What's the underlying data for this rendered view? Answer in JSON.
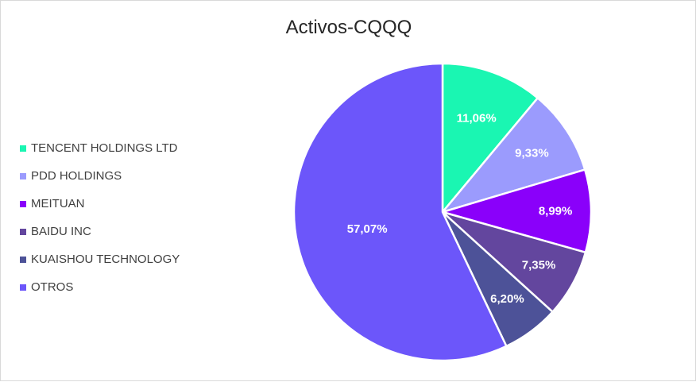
{
  "chart_data": {
    "type": "pie",
    "title": "Activos-CQQQ",
    "legend_position": "left",
    "slices": [
      {
        "label": "TENCENT HOLDINGS LTD",
        "value": 11.06,
        "display": "11,06%",
        "color": "#1AF6B2"
      },
      {
        "label": "PDD HOLDINGS",
        "value": 9.33,
        "display": "9,33%",
        "color": "#9B9BFD"
      },
      {
        "label": "MEITUAN",
        "value": 8.99,
        "display": "8,99%",
        "color": "#8A00FA"
      },
      {
        "label": "BAIDU INC",
        "value": 7.35,
        "display": "7,35%",
        "color": "#63469E"
      },
      {
        "label": "KUAISHOU TECHNOLOGY",
        "value": 6.2,
        "display": "6,20%",
        "color": "#4D5298"
      },
      {
        "label": "OTROS",
        "value": 57.07,
        "display": "57,07%",
        "color": "#6C56FA"
      }
    ]
  }
}
